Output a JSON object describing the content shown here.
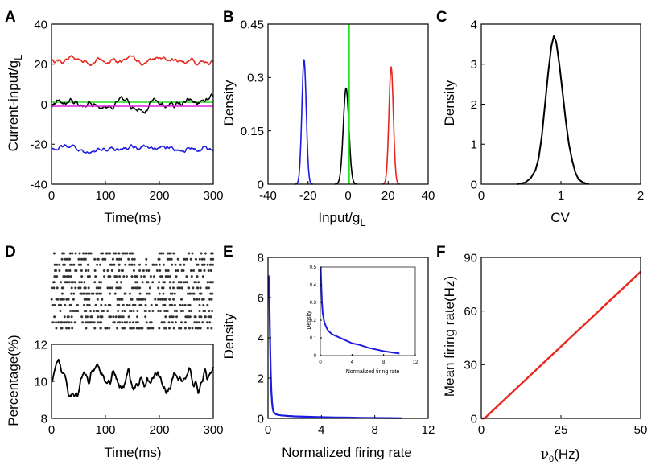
{
  "panels": {
    "A": {
      "label": "A",
      "xlabel": "Time(ms)",
      "ylabel": "Current-input/g",
      "ylabel_sub": "L",
      "xlim": [
        0,
        300
      ],
      "ylim": [
        -40,
        40
      ],
      "xticks": [
        "0",
        "100",
        "200",
        "300"
      ],
      "yticks": [
        "-40",
        "-20",
        "0",
        "20",
        "40"
      ]
    },
    "B": {
      "label": "B",
      "xlabel": "Input/g",
      "xlabel_sub": "L",
      "ylabel": "Density",
      "xlim": [
        -40,
        40
      ],
      "ylim": [
        0,
        0.45
      ],
      "xticks": [
        "-40",
        "-20",
        "0",
        "20",
        "40"
      ],
      "yticks": [
        "0",
        "0.15",
        "0.3",
        "0.45"
      ]
    },
    "C": {
      "label": "C",
      "xlabel": "CV",
      "ylabel": "Density",
      "xlim": [
        0,
        2
      ],
      "ylim": [
        0,
        4
      ],
      "xticks": [
        "0",
        "1",
        "2"
      ],
      "yticks": [
        "0",
        "1",
        "2",
        "3",
        "4"
      ]
    },
    "D": {
      "label": "D",
      "xlabel": "Time(ms)",
      "ylabel": "Percentage(%)",
      "xlim": [
        0,
        300
      ],
      "ylim": [
        8,
        12
      ],
      "xticks": [
        "0",
        "100",
        "200",
        "300"
      ],
      "yticks": [
        "8",
        "10",
        "12"
      ]
    },
    "E": {
      "label": "E",
      "xlabel": "Normalized firing rate",
      "ylabel": "Density",
      "xlim": [
        0,
        12
      ],
      "ylim": [
        0,
        8
      ],
      "xticks": [
        "0",
        "4",
        "8",
        "12"
      ],
      "yticks": [
        "0",
        "2",
        "4",
        "6",
        "8"
      ],
      "inset": {
        "xlabel": "Normalized firing rate",
        "ylabel": "Density",
        "xlim": [
          0,
          12
        ],
        "ylim": [
          0,
          0.5
        ],
        "xticks": [
          "0",
          "4",
          "8",
          "12"
        ],
        "yticks": [
          "0",
          "0.1",
          "0.2",
          "0.3",
          "0.4",
          "0.5"
        ]
      }
    },
    "F": {
      "label": "F",
      "xlabel_greek": "ν",
      "xlabel_sub": "0",
      "xlabel_rest": "(Hz)",
      "ylabel": "Mean firing rate(Hz)",
      "xlim": [
        0,
        50
      ],
      "ylim": [
        0,
        90
      ],
      "xticks": [
        "0",
        "25",
        "50"
      ],
      "yticks": [
        "0",
        "30",
        "60",
        "90"
      ]
    }
  },
  "colors": {
    "red": "#e8261d",
    "black": "#000000",
    "blue": "#1c1ce0",
    "green": "#22dd22",
    "magenta": "#dd22dd",
    "raster": "#333333"
  },
  "chart_data": [
    {
      "panel": "A",
      "type": "line",
      "series": [
        {
          "name": "red",
          "color": "red",
          "mean": 22,
          "noise": 1.2
        },
        {
          "name": "green",
          "color": "green",
          "mean": 1,
          "noise": 0
        },
        {
          "name": "black",
          "color": "black",
          "mean": 0,
          "noise": 1.6
        },
        {
          "name": "magenta",
          "color": "magenta",
          "mean": -1,
          "noise": 0
        },
        {
          "name": "blue",
          "color": "blue",
          "mean": -22,
          "noise": 1.2
        }
      ]
    },
    {
      "panel": "B",
      "type": "line",
      "series": [
        {
          "name": "blue",
          "color": "blue",
          "center": -22,
          "sd": 1.1,
          "peak": 0.35
        },
        {
          "name": "black",
          "color": "black",
          "center": -1,
          "sd": 1.4,
          "peak": 0.27
        },
        {
          "name": "red",
          "color": "red",
          "center": 21.5,
          "sd": 1.1,
          "peak": 0.33
        },
        {
          "name": "green",
          "color": "green",
          "center": 0.5,
          "sd": 0.12,
          "peak": 0.45
        }
      ]
    },
    {
      "panel": "C",
      "type": "line",
      "x": [
        0.45,
        0.55,
        0.62,
        0.68,
        0.72,
        0.76,
        0.8,
        0.84,
        0.88,
        0.91,
        0.94,
        0.98,
        1.02,
        1.06,
        1.1,
        1.14,
        1.18,
        1.22,
        1.28,
        1.35
      ],
      "y": [
        0,
        0.04,
        0.15,
        0.35,
        0.65,
        1.2,
        2.0,
        2.8,
        3.45,
        3.7,
        3.55,
        3.0,
        2.3,
        1.6,
        1.0,
        0.6,
        0.3,
        0.12,
        0.04,
        0
      ]
    },
    {
      "panel": "D",
      "type": "scatter+line",
      "raster_rows": 14,
      "dot_probability": 0.35,
      "line": {
        "mean": 10,
        "noise": 0.45
      }
    },
    {
      "panel": "E",
      "type": "line",
      "x": [
        0.05,
        0.1,
        0.15,
        0.2,
        0.25,
        0.3,
        0.35,
        0.4,
        0.5,
        0.6,
        0.8,
        1,
        1.5,
        2,
        3,
        4,
        5,
        6,
        7,
        8,
        9,
        10
      ],
      "y": [
        7.1,
        6.0,
        4.0,
        2.4,
        1.4,
        0.8,
        0.5,
        0.35,
        0.25,
        0.2,
        0.17,
        0.15,
        0.12,
        0.1,
        0.08,
        0.06,
        0.05,
        0.04,
        0.03,
        0.02,
        0.015,
        0.01
      ],
      "inset": {
        "x": [
          0.05,
          0.1,
          0.2,
          0.3,
          0.5,
          0.75,
          1,
          1.5,
          2,
          2.5,
          3,
          4,
          5,
          6,
          7,
          8,
          9,
          10
        ],
        "y": [
          0.5,
          0.42,
          0.3,
          0.24,
          0.19,
          0.16,
          0.14,
          0.12,
          0.11,
          0.1,
          0.09,
          0.07,
          0.06,
          0.045,
          0.035,
          0.025,
          0.018,
          0.012
        ]
      }
    },
    {
      "panel": "F",
      "type": "line",
      "x": [
        0,
        1,
        50
      ],
      "y": [
        0,
        0,
        82
      ],
      "color": "red"
    }
  ]
}
